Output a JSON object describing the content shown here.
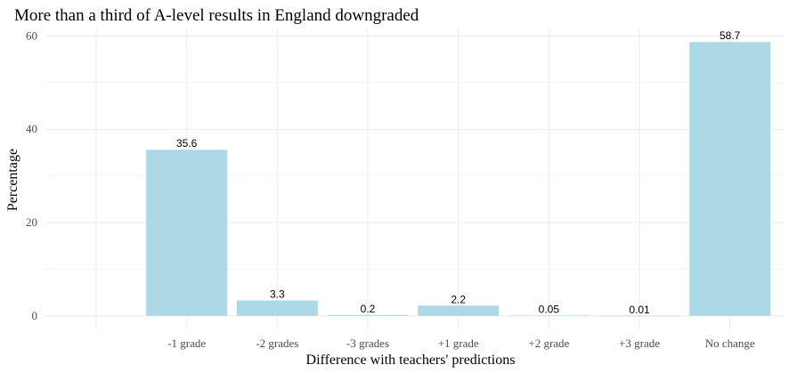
{
  "chart_data": {
    "type": "bar",
    "title": "More than a third of A-level results in England downgraded",
    "xlabel": "Difference with teachers' predictions",
    "ylabel": "Percentage",
    "categories": [
      "-1 grade",
      "-2 grades",
      "-3 grades",
      "+1 grade",
      "+2 grade",
      "+3 grade",
      "No change"
    ],
    "values": [
      35.6,
      3.3,
      0.2,
      2.2,
      0.05,
      0.01,
      58.7
    ],
    "value_labels": [
      "35.6",
      "3.3",
      "0.2",
      "2.2",
      "0.05",
      "0.01",
      "58.7"
    ],
    "leading_empty_slot": true,
    "ylim": [
      -2.9,
      61.6
    ],
    "yticks": [
      0,
      20,
      40,
      60
    ],
    "ytick_labels": [
      "0",
      "20",
      "40",
      "60"
    ],
    "grid": true,
    "legend": "none",
    "bar_color": "#add8e6"
  }
}
